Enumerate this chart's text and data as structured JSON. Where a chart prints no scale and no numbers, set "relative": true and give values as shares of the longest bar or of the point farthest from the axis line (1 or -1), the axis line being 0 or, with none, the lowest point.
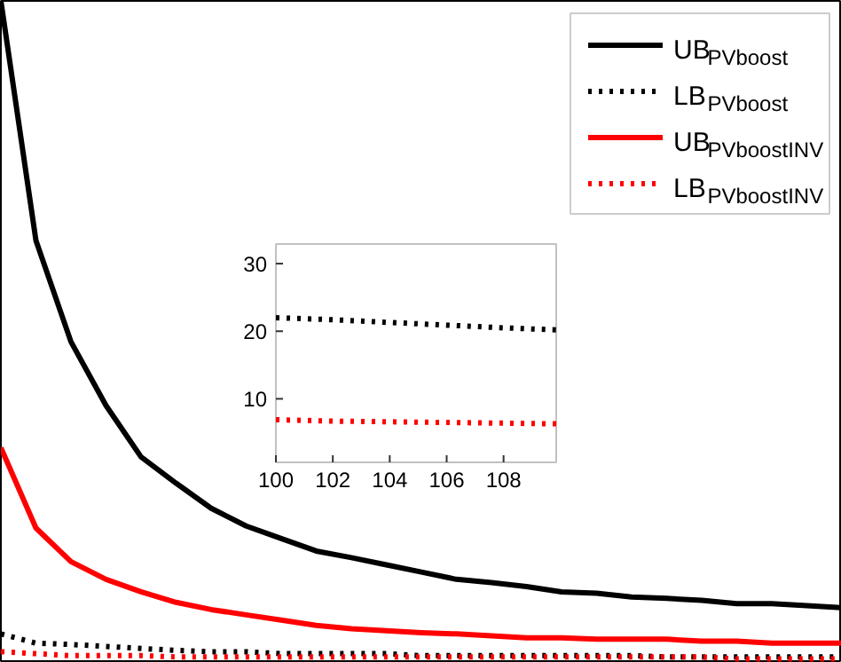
{
  "chart_data": [
    {
      "type": "line",
      "relative": true,
      "legend": "top right",
      "categories": [
        null,
        null,
        null,
        null,
        null,
        null,
        null,
        null,
        null,
        null,
        null,
        null,
        null,
        null,
        null,
        null,
        null,
        null,
        null,
        null,
        null,
        null,
        null,
        null,
        null
      ],
      "series": [
        {
          "name": "UB$_{PVboost}$",
          "color": "#000000",
          "line_style": "solid",
          "values": [
            1,
            0.636,
            0.482,
            0.385,
            0.307,
            0.267,
            0.229,
            0.202,
            0.183,
            0.164,
            0.154,
            0.143,
            0.132,
            0.121,
            0.116,
            0.11,
            0.102,
            0.1,
            0.094,
            0.092,
            0.089,
            0.084,
            0.084,
            0.081,
            0.078
          ]
        },
        {
          "name": "LB$_{PVboost}$",
          "color": "#000000",
          "line_style": "dotted",
          "values": [
            0.038,
            0.024,
            0.022,
            0.019,
            0.016,
            0.013,
            0.011,
            0.011,
            0.008,
            0.008,
            0.008,
            0.008,
            0.005,
            0.005,
            0.005,
            0.005,
            0.005,
            0.005,
            0.005,
            0.003,
            0.003,
            0.003,
            0.003,
            0.003,
            0.003
          ]
        },
        {
          "name": "UB$_{PVboostINV}$",
          "color": "#ff0000",
          "line_style": "solid",
          "values": [
            0.321,
            0.199,
            0.148,
            0.121,
            0.102,
            0.086,
            0.075,
            0.067,
            0.059,
            0.051,
            0.046,
            0.043,
            0.04,
            0.038,
            0.035,
            0.032,
            0.032,
            0.03,
            0.03,
            0.03,
            0.027,
            0.027,
            0.024,
            0.024,
            0.024
          ]
        },
        {
          "name": "LB$_{PVboostINV}$",
          "color": "#ff0000",
          "line_style": "dotted",
          "values": [
            0.011,
            0.008,
            0.005,
            0.005,
            0.005,
            0.003,
            0.003,
            0.003,
            0.003,
            0.003,
            0.003,
            0.003,
            0.003,
            0.003,
            0.003,
            0.003,
            0.003,
            0.003,
            0.003,
            0.003,
            0.003,
            0,
            0,
            0,
            0
          ]
        }
      ]
    },
    {
      "type": "line",
      "xlim": [
        100,
        109.85
      ],
      "ylim": [
        0.6,
        32.9
      ],
      "xticks": [
        100,
        102,
        104,
        106,
        108
      ],
      "yticks": [
        10,
        20,
        30
      ],
      "series": [
        {
          "color": "#000000",
          "line_style": "dotted",
          "x": [
            100,
            102,
            104,
            106,
            108,
            109.85
          ],
          "values": [
            22,
            21.7,
            21.3,
            20.9,
            20.5,
            20.2
          ]
        },
        {
          "color": "#ff0000",
          "line_style": "dotted",
          "x": [
            100,
            102,
            104,
            106,
            108,
            109.85
          ],
          "values": [
            6.9,
            6.7,
            6.6,
            6.5,
            6.4,
            6.3
          ]
        }
      ]
    }
  ]
}
